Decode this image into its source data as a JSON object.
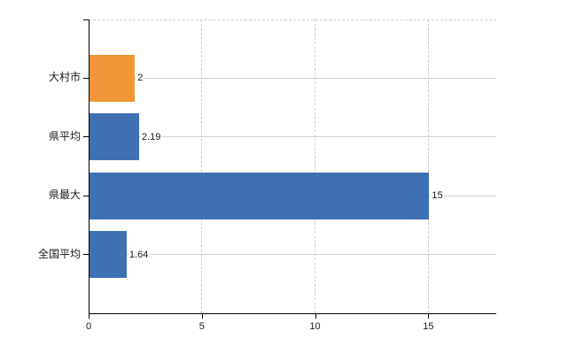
{
  "page": {
    "background": "#ffffff"
  },
  "chart_data": {
    "type": "bar",
    "orientation": "horizontal",
    "title": "",
    "xlabel": "",
    "ylabel": "",
    "categories": [
      "大村市",
      "県平均",
      "県最大",
      "全国平均"
    ],
    "values": [
      2,
      2.19,
      15,
      1.64
    ],
    "value_labels": [
      "2",
      "2.19",
      "15",
      "1.64"
    ],
    "bar_colors": [
      "#F09637",
      "#3E70B4",
      "#3E70B4",
      "#3E70B4"
    ],
    "xlim": [
      0,
      18
    ],
    "x_ticks": [
      0,
      5,
      10,
      15
    ],
    "x_tick_labels": [
      "0",
      "5",
      "10",
      "15"
    ],
    "grid": true,
    "legend_position": "none"
  },
  "colors": {
    "bar_blue": "#3E70B4",
    "bar_orange": "#F09637",
    "grid_horizontal": "#ccd6cc",
    "grid_vertical": "#c9d1c9",
    "plot_top_border": "#c9cdc9",
    "axis": "#000000",
    "text": "#1a1a1a",
    "background": "#ffffff"
  }
}
